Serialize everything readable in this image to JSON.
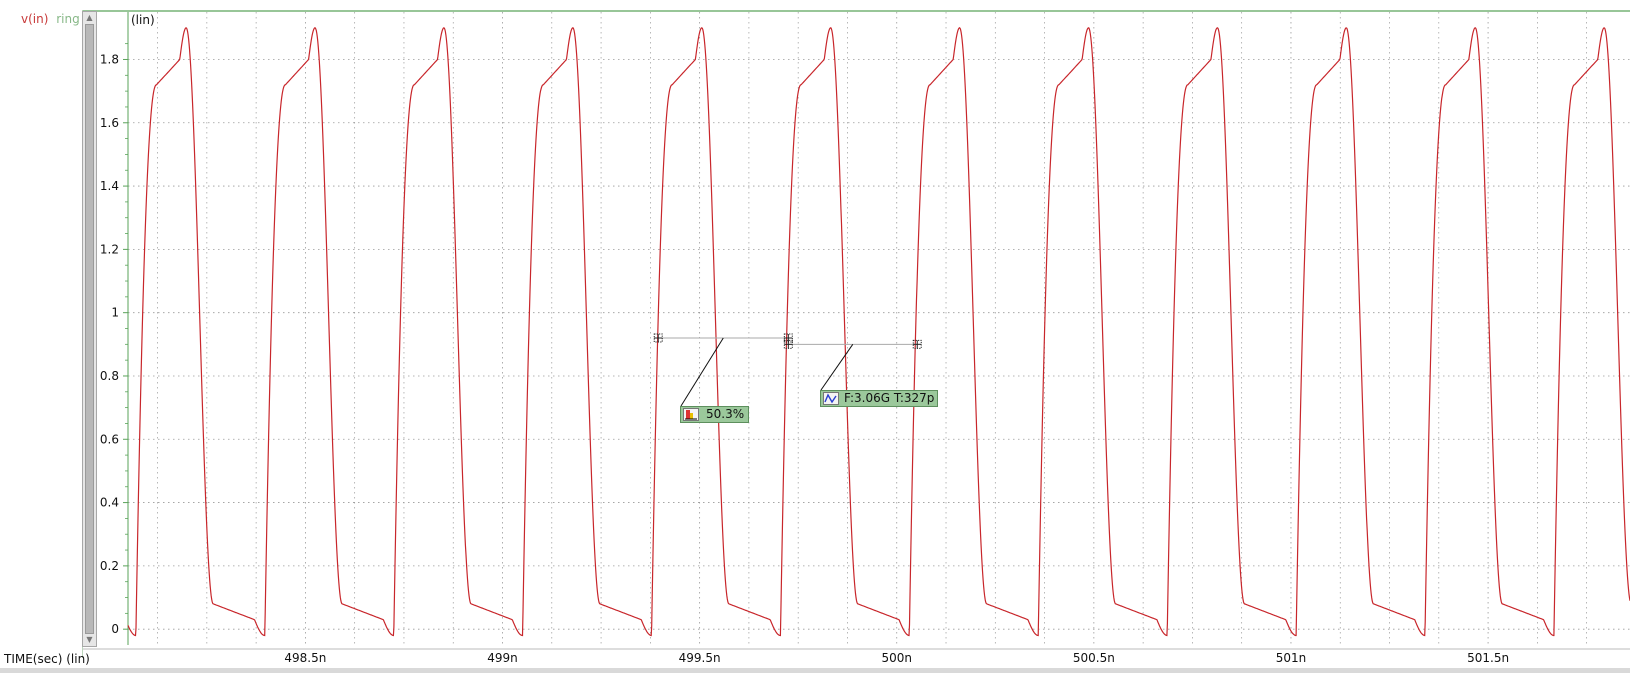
{
  "legend": {
    "signal": "v(in)",
    "group": "ring"
  },
  "y_scale_label": "(lin)",
  "x_axis_title": "TIME(sec) (lin)",
  "measurements": {
    "duty": "50.3%",
    "freq_period": "F:3.06G T:327p"
  },
  "colors": {
    "trace": "#c8262b",
    "grid": "#9a9a9a",
    "axis_frame": "#5aa35a",
    "marker_box": "#9bc89b"
  },
  "icons": {
    "duty": "duty-cycle-icon",
    "freq": "sine-wave-icon",
    "scroll_up": "arrow-up-icon",
    "scroll_down": "arrow-down-icon"
  },
  "chart_data": {
    "type": "line",
    "title": "",
    "xlabel": "TIME(sec) (lin)",
    "ylabel": "(lin)",
    "xlim": [
      498.05,
      501.86
    ],
    "ylim": [
      -0.05,
      1.95
    ],
    "x_unit": "n",
    "x_ticks": [
      498.5,
      499,
      499.5,
      500,
      500.5,
      501,
      501.5
    ],
    "x_tick_labels": [
      "498.5n",
      "499n",
      "499.5n",
      "500n",
      "500.5n",
      "501n",
      "501.5n"
    ],
    "y_ticks": [
      0,
      0.2,
      0.4,
      0.6,
      0.8,
      1,
      1.2,
      1.4,
      1.6,
      1.8
    ],
    "y_tick_labels": [
      "0",
      "0.2",
      "0.4",
      "0.6",
      "0.8",
      "1",
      "1.2",
      "1.4",
      "1.6",
      "1.8"
    ],
    "grid": true,
    "series": [
      {
        "name": "v(in)",
        "signal_type": "ring oscillator, periodic",
        "first_low_min_time": 498.07,
        "period": 0.327,
        "low": -0.02,
        "high": 1.9,
        "duty_cycle": 0.503,
        "shape": "fast rise to ~1.75 shoulder, peak ~1.9, sharp fall, small ledge ~0.05 before minimum"
      }
    ],
    "markers": [
      {
        "x": [
          499.395,
          499.725
        ],
        "y": 0.92,
        "label": "50.3%"
      },
      {
        "x": [
          499.725,
          500.052
        ],
        "y": 0.9,
        "label": "F:3.06G T:327p"
      }
    ]
  }
}
